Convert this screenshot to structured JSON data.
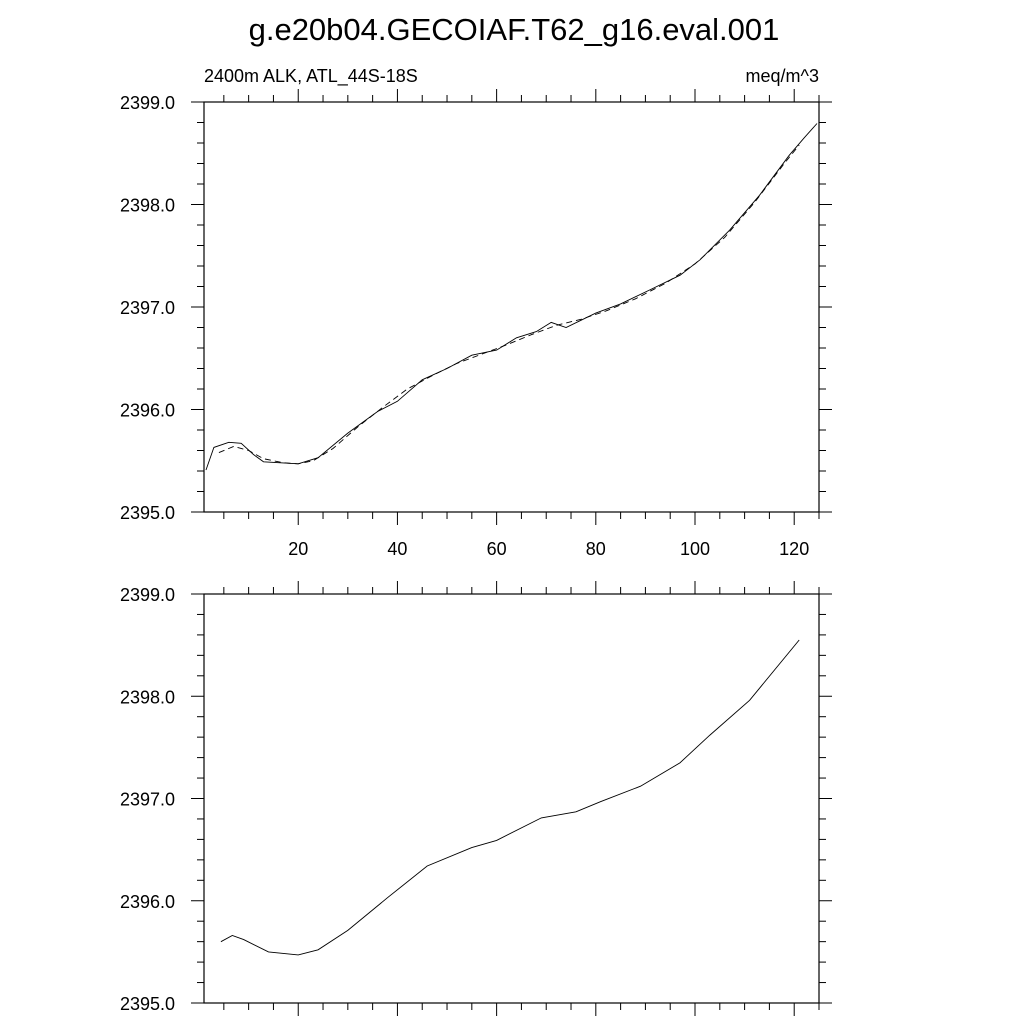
{
  "chart_data": [
    {
      "type": "line",
      "title": "g.e20b04.GECOIAF.T62_g16.eval.001",
      "left_subtitle": "2400m ALK, ATL_44S-18S",
      "right_subtitle": "meq/m^3",
      "xlim": [
        1,
        125
      ],
      "ylim": [
        2395.0,
        2399.0
      ],
      "xticks": [
        20,
        40,
        60,
        80,
        100,
        120
      ],
      "xtick_labels": [
        "20",
        "40",
        "60",
        "80",
        "100",
        "120"
      ],
      "yticks": [
        2395.0,
        2396.0,
        2397.0,
        2398.0,
        2399.0
      ],
      "ytick_labels": [
        "2395.0",
        "2396.0",
        "2397.0",
        "2398.0",
        "2399.0"
      ],
      "grid": false,
      "series": [
        {
          "style": "solid",
          "color": "#000000",
          "x": [
            1.4,
            3,
            6,
            8.5,
            11,
            13,
            20,
            24,
            30,
            36,
            40,
            45,
            50,
            55,
            60,
            64,
            68,
            71,
            74,
            77,
            80,
            85,
            91,
            97,
            101,
            107,
            113,
            119,
            122,
            124.6
          ],
          "y": [
            2395.41,
            2395.63,
            2395.68,
            2395.67,
            2395.56,
            2395.49,
            2395.47,
            2395.53,
            2395.77,
            2395.98,
            2396.08,
            2396.29,
            2396.4,
            2396.53,
            2396.58,
            2396.7,
            2396.76,
            2396.85,
            2396.8,
            2396.87,
            2396.94,
            2397.03,
            2397.17,
            2397.31,
            2397.46,
            2397.75,
            2398.09,
            2398.48,
            2398.65,
            2398.79
          ]
        },
        {
          "style": "dashed",
          "color": "#000000",
          "x": [
            4,
            7,
            10,
            13,
            17,
            20,
            23,
            27,
            32,
            37,
            42,
            47,
            52,
            57,
            62,
            67,
            72,
            77,
            82,
            88,
            94,
            100,
            106,
            112,
            118,
            121
          ],
          "y": [
            2395.58,
            2395.64,
            2395.6,
            2395.52,
            2395.48,
            2395.47,
            2395.5,
            2395.62,
            2395.83,
            2396.02,
            2396.2,
            2396.33,
            2396.45,
            2396.54,
            2396.63,
            2396.73,
            2396.82,
            2396.88,
            2396.96,
            2397.08,
            2397.23,
            2397.42,
            2397.68,
            2398.02,
            2398.4,
            2398.58
          ]
        }
      ]
    },
    {
      "type": "line",
      "xlim": [
        1,
        125
      ],
      "ylim": [
        2395.0,
        2399.0
      ],
      "xticks": [
        20,
        40,
        60,
        80,
        100,
        120
      ],
      "yticks": [
        2395.0,
        2396.0,
        2397.0,
        2398.0,
        2399.0
      ],
      "ytick_labels": [
        "2395.0",
        "2396.0",
        "2397.0",
        "2398.0",
        "2399.0"
      ],
      "grid": false,
      "series": [
        {
          "style": "solid",
          "color": "#000000",
          "x": [
            4.4,
            6.7,
            9,
            14,
            20,
            24,
            30,
            38,
            46,
            55,
            60,
            69,
            76,
            81,
            89,
            97,
            103,
            111,
            121
          ],
          "y": [
            2395.6,
            2395.66,
            2395.62,
            2395.5,
            2395.47,
            2395.52,
            2395.71,
            2396.03,
            2396.34,
            2396.52,
            2396.59,
            2396.81,
            2396.87,
            2396.97,
            2397.12,
            2397.35,
            2397.62,
            2397.96,
            2398.55
          ]
        }
      ]
    }
  ]
}
